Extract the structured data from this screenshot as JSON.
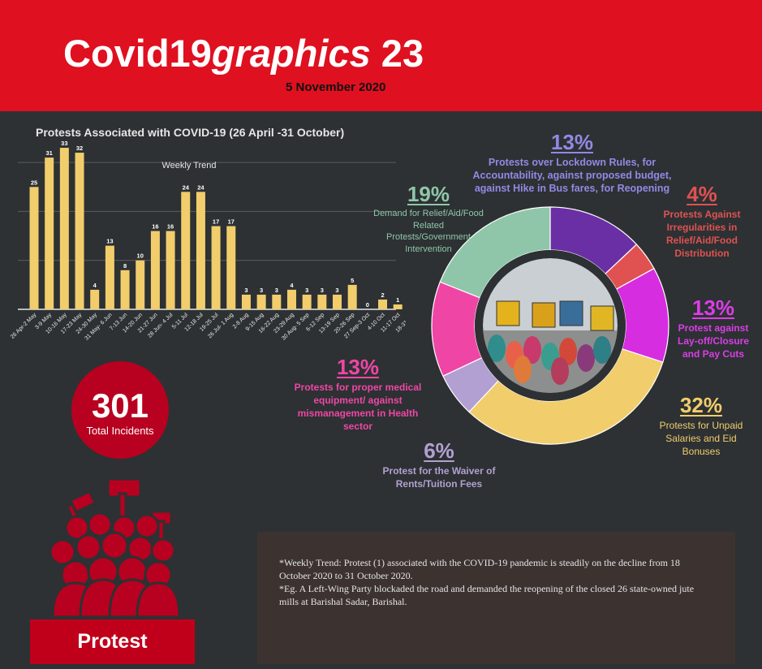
{
  "header": {
    "title_main": "Covid19",
    "title_italic": "graphics",
    "title_num": " 23",
    "date": "5 November 2020"
  },
  "colors": {
    "header_bg": "#df1020",
    "background": "#2d3133",
    "bar": "#f1cd6c",
    "accent_red": "#b80020"
  },
  "chart_data": [
    {
      "type": "bar",
      "title": "Protests Associated with COVID-19 (26 April -31 October)",
      "subtitle": "Weekly Trend",
      "categories": [
        "26 Apr-2 May",
        "3-9 May",
        "10-16 May",
        "17-23 May",
        "24-30 May",
        "31 May- 6 Jun",
        "7-13 Jun",
        "14-20 Jun",
        "21-27 Jun",
        "28 Jun- 4 Jul",
        "5-11 Jul",
        "12-18 Jul",
        "19-25 Jul",
        "26 Jul- 1 Aug",
        "2-8 Aug",
        "9-15 Aug",
        "16-22 Aug",
        "23-29 Aug",
        "30 Aug- 5 Sep",
        "6-12 Sep",
        "13-19 Sep",
        "20-26 Sep",
        "27 Sep-3 Oct",
        "4-10 Oct",
        "11-17 Oct",
        "18-31 Oct"
      ],
      "values": [
        25,
        31,
        33,
        32,
        4,
        13,
        8,
        10,
        16,
        16,
        24,
        24,
        17,
        17,
        3,
        3,
        3,
        4,
        3,
        3,
        3,
        5,
        0,
        2,
        1,
        1
      ],
      "ylim": [
        0,
        35
      ],
      "grid": true
    },
    {
      "type": "pie",
      "variant": "donut",
      "slices": [
        {
          "label": "Protests over Lockdown Rules, for Accountability, against proposed budget, against Hike in Bus fares, for Reopening",
          "pct_label": "13%",
          "value": 13,
          "color": "#6b2fa5"
        },
        {
          "label": "Protests Against Irregularities in Relief/Aid/Food Distribution",
          "pct_label": "4%",
          "value": 4,
          "color": "#e05252"
        },
        {
          "label": "Protest against Lay-off/Closure and Pay Cuts",
          "pct_label": "13%",
          "value": 13,
          "color": "#d62de0"
        },
        {
          "label": "Protests for Unpaid Salaries and Eid Bonuses",
          "pct_label": "32%",
          "value": 32,
          "color": "#f1cd6c"
        },
        {
          "label": "Protest for the Waiver of Rents/Tuition Fees",
          "pct_label": "6%",
          "value": 6,
          "color": "#b3a0d2"
        },
        {
          "label": "Protests for proper medical equipment/ against mismanagement in Health sector",
          "pct_label": "13%",
          "value": 13,
          "color": "#ef46a6"
        },
        {
          "label": "Demand for Relief/Aid/Food Related Protests/Government Intervention",
          "pct_label": "19%",
          "value": 19,
          "color": "#8fc6a9"
        }
      ]
    }
  ],
  "total": {
    "number": "301",
    "label": "Total Incidents"
  },
  "protest_label": "Protest",
  "note": {
    "line1": "*Weekly Trend: Protest (1) associated with the COVID-19 pandemic is steadily on the decline from 18 October 2020 to 31 October 2020.",
    "line2": "*Eg. A Left-Wing Party blockaded the road and demanded the reopening of the closed 26 state-owned jute mills at Barishal Sadar, Barishal."
  }
}
